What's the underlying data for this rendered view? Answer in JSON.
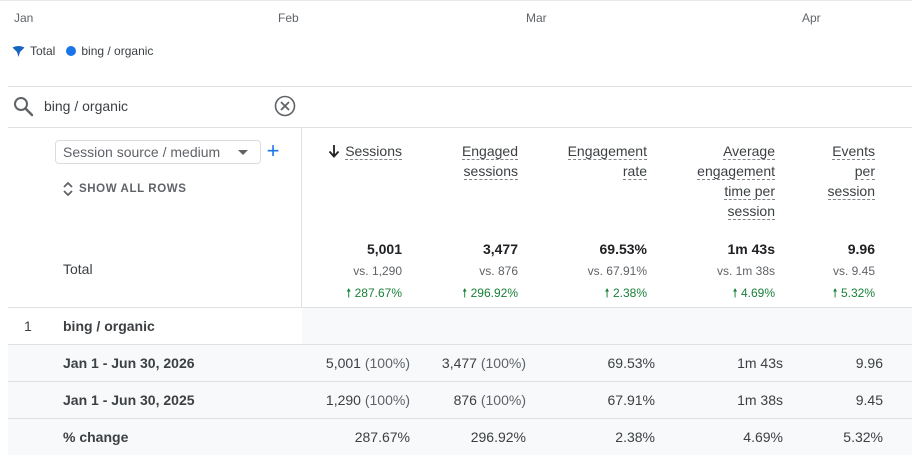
{
  "timeline": {
    "months": [
      "Jan",
      "Feb",
      "Mar",
      "Apr"
    ]
  },
  "legend": {
    "items": [
      {
        "label": "Total",
        "icon": "total-marker-icon",
        "color": "#1565c0"
      },
      {
        "label": "bing / organic",
        "icon": "dot-icon",
        "color": "#1a73e8"
      }
    ]
  },
  "search": {
    "value": "bing / organic",
    "icon": "search-icon",
    "clear_icon": "clear-icon"
  },
  "table": {
    "dimension_select": "Session source / medium",
    "show_all_rows": "SHOW ALL ROWS",
    "columns": [
      {
        "label_lines": [
          "Sessions"
        ],
        "sorted": true
      },
      {
        "label_lines": [
          "Engaged",
          "sessions"
        ]
      },
      {
        "label_lines": [
          "Engagement",
          "rate"
        ]
      },
      {
        "label_lines": [
          "Average",
          "engagement",
          "time per",
          "session"
        ]
      },
      {
        "label_lines": [
          "Events",
          "per",
          "session"
        ]
      }
    ],
    "total": {
      "label": "Total",
      "values": [
        "5,001",
        "3,477",
        "69.53%",
        "1m 43s",
        "9.96"
      ],
      "vs": [
        "vs. 1,290",
        "vs. 876",
        "vs. 67.91%",
        "vs. 1m 38s",
        "vs. 9.45"
      ],
      "changes": [
        "287.67%",
        "296.92%",
        "2.38%",
        "4.69%",
        "5.32%"
      ]
    },
    "rows": [
      {
        "index": "1",
        "label": "bing / organic"
      },
      {
        "label": "Jan 1 - Jun 30, 2026",
        "cells": [
          [
            "5,001",
            "(100%)"
          ],
          [
            "3,477",
            "(100%)"
          ],
          [
            "69.53%"
          ],
          [
            "1m 43s"
          ],
          [
            "9.96"
          ]
        ]
      },
      {
        "label": "Jan 1 - Jun 30, 2025",
        "cells": [
          [
            "1,290",
            "(100%)"
          ],
          [
            "876",
            "(100%)"
          ],
          [
            "67.91%"
          ],
          [
            "1m 38s"
          ],
          [
            "9.45"
          ]
        ]
      },
      {
        "label": "% change",
        "cells": [
          [
            "287.67%"
          ],
          [
            "296.92%"
          ],
          [
            "2.38%"
          ],
          [
            "4.69%"
          ],
          [
            "5.32%"
          ]
        ]
      }
    ],
    "colors": {
      "positive": "#188038",
      "accent": "#1a73e8"
    }
  }
}
